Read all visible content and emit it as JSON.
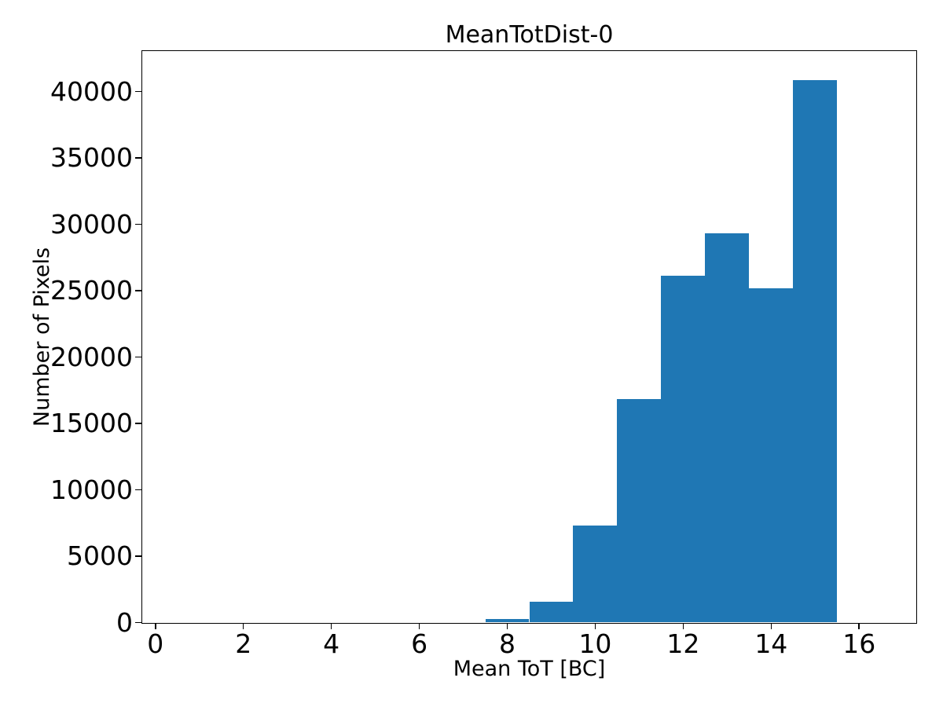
{
  "figure": {
    "background": "#ffffff",
    "text_color": "#000000",
    "spine_color": "#000000"
  },
  "chart_data": {
    "type": "bar",
    "subtype": "histogram",
    "title": "MeanTotDist-0",
    "xlabel": "Mean ToT [BC]",
    "ylabel": "Number of Pixels",
    "bar_color": "#1f77b4",
    "bin_edges": [
      7.5,
      8.5,
      9.5,
      10.5,
      11.5,
      12.5,
      13.5,
      14.5,
      15.5
    ],
    "values": [
      280,
      1570,
      7290,
      16820,
      26130,
      29310,
      25160,
      40880
    ],
    "xticks": [
      0,
      2,
      4,
      6,
      8,
      10,
      12,
      14,
      16
    ],
    "yticks": [
      0,
      5000,
      10000,
      15000,
      20000,
      25000,
      30000,
      35000,
      40000
    ],
    "xlim": [
      -0.3,
      17.3
    ],
    "ylim": [
      0,
      43050
    ],
    "grid": false,
    "legend": null
  }
}
